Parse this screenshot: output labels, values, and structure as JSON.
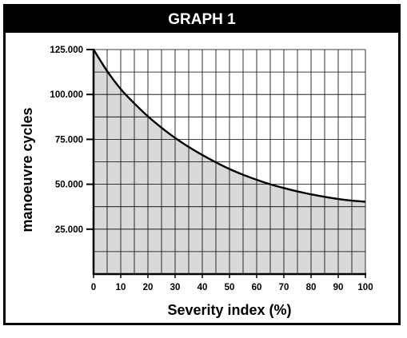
{
  "chart_data": {
    "type": "area",
    "title": "GRAPH 1",
    "xlabel": "Severity index (%)",
    "ylabel": "manoeuvre cycles",
    "xlim": [
      0,
      100
    ],
    "ylim": [
      0,
      125000
    ],
    "x_ticks": [
      0,
      10,
      20,
      30,
      40,
      50,
      60,
      70,
      80,
      90,
      100
    ],
    "x_tick_labels": [
      "0",
      "10",
      "20",
      "30",
      "40",
      "50",
      "60",
      "70",
      "80",
      "90",
      "100"
    ],
    "y_ticks": [
      25000,
      50000,
      75000,
      100000,
      125000
    ],
    "y_tick_labels": [
      "25.000",
      "50.000",
      "75.000",
      "100.000",
      "125.000"
    ],
    "grid": true,
    "legend": "none",
    "series": [
      {
        "x": [
          0,
          5,
          10,
          15,
          20,
          25,
          30,
          35,
          40,
          45,
          50,
          55,
          60,
          65,
          70,
          75,
          80,
          85,
          90,
          95,
          100
        ],
        "y": [
          125000,
          113000,
          103000,
          95000,
          87800,
          81500,
          75800,
          70800,
          66300,
          62200,
          58500,
          55300,
          52500,
          50000,
          47900,
          46000,
          44400,
          43000,
          41800,
          40900,
          40300
        ]
      }
    ],
    "colors": {
      "fill": "#d9d9d9",
      "line": "#000000",
      "grid": "#000000"
    }
  }
}
